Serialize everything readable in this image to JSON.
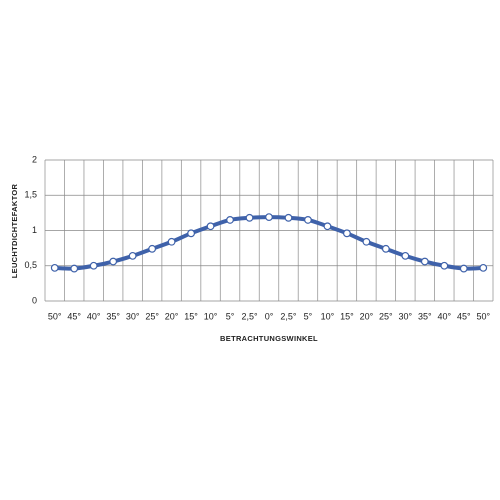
{
  "chart_data": {
    "type": "line",
    "xlabel": "BETRACHTUNGSWINKEL",
    "ylabel": "LEUCHTDICHTEFAKTOR",
    "categories": [
      "50°",
      "45°",
      "40°",
      "35°",
      "30°",
      "25°",
      "20°",
      "15°",
      "10°",
      "5°",
      "2,5°",
      "0°",
      "2,5°",
      "5°",
      "10°",
      "15°",
      "20°",
      "25°",
      "30°",
      "35°",
      "40°",
      "45°",
      "50°"
    ],
    "values": [
      0.47,
      0.46,
      0.5,
      0.56,
      0.64,
      0.74,
      0.84,
      0.96,
      1.06,
      1.15,
      1.18,
      1.19,
      1.18,
      1.15,
      1.06,
      0.96,
      0.84,
      0.74,
      0.64,
      0.56,
      0.5,
      0.46,
      0.47
    ],
    "color": "#3f62aa",
    "ylim": [
      0,
      2
    ],
    "yticks": [
      0,
      {
        "value": 0.5,
        "label": "0,5"
      },
      1,
      {
        "value": 1.5,
        "label": "1,5"
      },
      2
    ],
    "grid": true
  }
}
